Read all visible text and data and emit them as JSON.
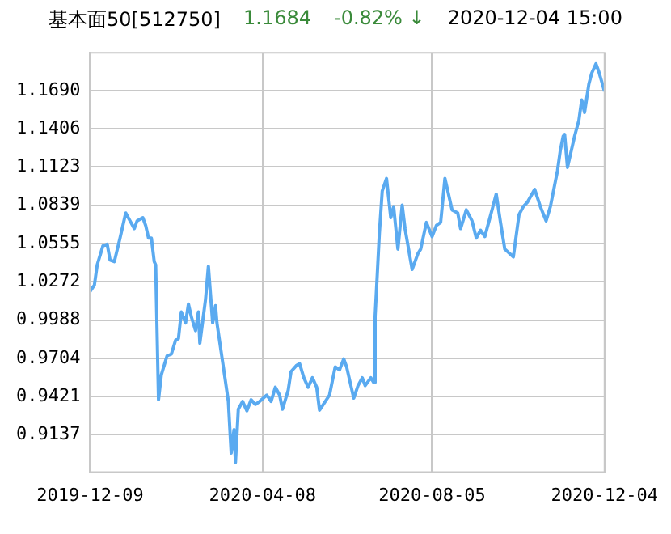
{
  "chart_data": {
    "type": "line",
    "title": "基本面50[512750]",
    "annotations": [
      "1.1684",
      "-0.82% ↓",
      "2020-12-04 15:00"
    ],
    "x": [
      "2019-12-09",
      "2019-12-12",
      "2019-12-14",
      "2019-12-18",
      "2019-12-21",
      "2019-12-23",
      "2019-12-26",
      "2019-12-30",
      "2020-01-03",
      "2020-01-06",
      "2020-01-09",
      "2020-01-11",
      "2020-01-15",
      "2020-01-17",
      "2020-01-19",
      "2020-01-21",
      "2020-01-23",
      "2020-01-24",
      "2020-01-26",
      "2020-01-28",
      "2020-02-01",
      "2020-02-04",
      "2020-02-07",
      "2020-02-09",
      "2020-02-11",
      "2020-02-14",
      "2020-02-16",
      "2020-02-18",
      "2020-02-21",
      "2020-02-23",
      "2020-02-24",
      "2020-02-28",
      "2020-03-01",
      "2020-03-04",
      "2020-03-06",
      "2020-03-07",
      "2020-03-11",
      "2020-03-15",
      "2020-03-17",
      "2020-03-19",
      "2020-03-20",
      "2020-03-22",
      "2020-03-25",
      "2020-03-28",
      "2020-03-31",
      "2020-04-03",
      "2020-04-06",
      "2020-04-11",
      "2020-04-14",
      "2020-04-17",
      "2020-04-20",
      "2020-04-22",
      "2020-04-26",
      "2020-04-28",
      "2020-05-02",
      "2020-05-04",
      "2020-05-07",
      "2020-05-10",
      "2020-05-13",
      "2020-05-16",
      "2020-05-18",
      "2020-05-25",
      "2020-05-29",
      "2020-06-01",
      "2020-06-04",
      "2020-06-06",
      "2020-06-11",
      "2020-06-14",
      "2020-06-17",
      "2020-06-19",
      "2020-06-23",
      "2020-06-25",
      "2020-06-26",
      "2020-06-29",
      "2020-07-01",
      "2020-07-04",
      "2020-07-07",
      "2020-07-09",
      "2020-07-12",
      "2020-07-15",
      "2020-07-17",
      "2020-07-22",
      "2020-07-26",
      "2020-07-28",
      "2020-08-01",
      "2020-08-05",
      "2020-08-08",
      "2020-08-11",
      "2020-08-14",
      "2020-08-19",
      "2020-08-23",
      "2020-08-25",
      "2020-08-29",
      "2020-09-02",
      "2020-09-05",
      "2020-09-08",
      "2020-09-11",
      "2020-09-14",
      "2020-09-19",
      "2020-09-22",
      "2020-09-25",
      "2020-10-01",
      "2020-10-05",
      "2020-10-08",
      "2020-10-11",
      "2020-10-16",
      "2020-10-20",
      "2020-10-24",
      "2020-10-27",
      "2020-11-01",
      "2020-11-03",
      "2020-11-05",
      "2020-11-06",
      "2020-11-08",
      "2020-11-13",
      "2020-11-16",
      "2020-11-18",
      "2020-11-20",
      "2020-11-23",
      "2020-11-25",
      "2020-11-28",
      "2020-11-30",
      "2020-12-04"
    ],
    "series": [
      {
        "color": "#5aaaf0",
        "values": [
          1.02,
          1.0247,
          1.0398,
          1.0538,
          1.055,
          1.0433,
          1.0421,
          1.0596,
          1.0782,
          1.0724,
          1.0666,
          1.0724,
          1.0747,
          1.0689,
          1.0596,
          1.0596,
          1.0421,
          1.0398,
          0.9397,
          0.9583,
          0.9723,
          0.9735,
          0.9839,
          0.9851,
          1.0049,
          0.9967,
          1.0107,
          1.0014,
          0.9909,
          1.0049,
          0.9816,
          1.0142,
          1.0386,
          0.9967,
          1.0095,
          0.9967,
          0.9676,
          0.9385,
          0.9001,
          0.9176,
          0.8931,
          0.9327,
          0.9385,
          0.9315,
          0.9397,
          0.9362,
          0.9385,
          0.9432,
          0.9385,
          0.949,
          0.9432,
          0.9327,
          0.9467,
          0.9606,
          0.9653,
          0.9665,
          0.956,
          0.949,
          0.956,
          0.949,
          0.932,
          0.9432,
          0.9641,
          0.9618,
          0.97,
          0.9641,
          0.9409,
          0.9502,
          0.956,
          0.9502,
          0.956,
          0.9525,
          1.0014,
          1.0631,
          1.0945,
          1.1038,
          1.0747,
          1.0829,
          1.0514,
          1.084,
          1.0666,
          1.0363,
          1.048,
          1.0514,
          1.0712,
          1.0607,
          1.0689,
          1.0712,
          1.1038,
          1.0805,
          1.0782,
          1.0666,
          1.0805,
          1.0724,
          1.0596,
          1.0654,
          1.0607,
          1.0724,
          1.0922,
          1.0712,
          1.0514,
          1.0456,
          1.077,
          1.0829,
          1.0864,
          1.0957,
          1.0829,
          1.0724,
          1.0829,
          1.1096,
          1.1248,
          1.1352,
          1.1364,
          1.112,
          1.1352,
          1.1469,
          1.162,
          1.1527,
          1.1737,
          1.1818,
          1.1888,
          1.183,
          1.1684
        ]
      }
    ],
    "xlim": [
      "2019-12-09",
      "2020-12-04"
    ],
    "xticks": [
      "2019-12-09",
      "2020-04-08",
      "2020-08-05",
      "2020-12-04"
    ],
    "ylim": [
      0.886,
      1.197
    ],
    "yticks": [
      0.9137,
      0.9421,
      0.9704,
      0.9988,
      1.0272,
      1.0555,
      1.0839,
      1.1123,
      1.1406,
      {
        "value": 1.169,
        "label": "1.1690"
      }
    ],
    "grid": true,
    "marker": "none",
    "line_style": "solid",
    "legend": false
  }
}
